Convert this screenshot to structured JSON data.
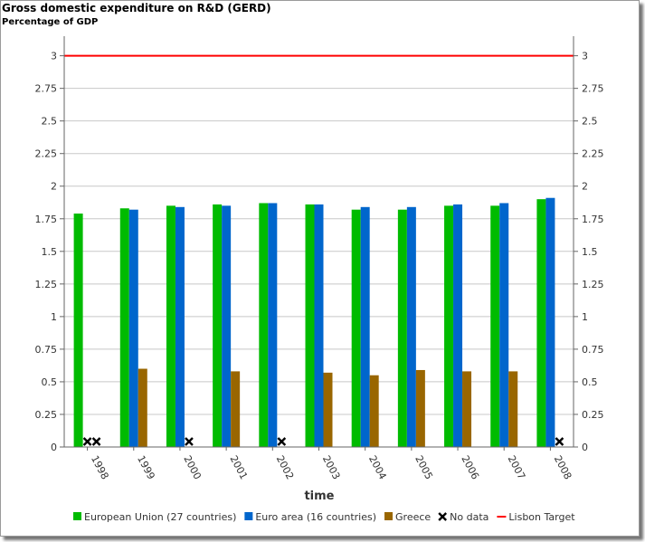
{
  "chart_data": {
    "type": "bar",
    "title": "Gross domestic expenditure on R&D (GERD)",
    "subtitle": "Percentage of GDP",
    "xlabel": "time",
    "ylabel": "",
    "ylim": [
      0,
      3.15
    ],
    "yticks": [
      "0",
      "0.25",
      "0.5",
      "0.75",
      "1",
      "1.25",
      "1.5",
      "1.75",
      "2",
      "2.25",
      "2.5",
      "2.75",
      "3"
    ],
    "categories": [
      "1998",
      "1999",
      "2000",
      "2001",
      "2002",
      "2003",
      "2004",
      "2005",
      "2006",
      "2007",
      "2008"
    ],
    "series": [
      {
        "name": "European Union (27 countries)",
        "color": "#00bb00",
        "values": [
          1.79,
          1.83,
          1.85,
          1.86,
          1.87,
          1.86,
          1.82,
          1.82,
          1.85,
          1.85,
          1.9
        ]
      },
      {
        "name": "Euro area (16 countries)",
        "color": "#0066cc",
        "values": [
          null,
          1.82,
          1.84,
          1.85,
          1.87,
          1.86,
          1.84,
          1.84,
          1.86,
          1.87,
          1.91
        ]
      },
      {
        "name": "Greece",
        "color": "#996600",
        "values": [
          null,
          0.6,
          null,
          0.58,
          null,
          0.57,
          0.55,
          0.59,
          0.58,
          0.58,
          null
        ]
      }
    ],
    "reference_lines": [
      {
        "name": "Lisbon Target",
        "value": 3,
        "color": "#ff0000"
      }
    ],
    "no_data_label": "No data",
    "grid": true,
    "legend_position": "bottom"
  }
}
